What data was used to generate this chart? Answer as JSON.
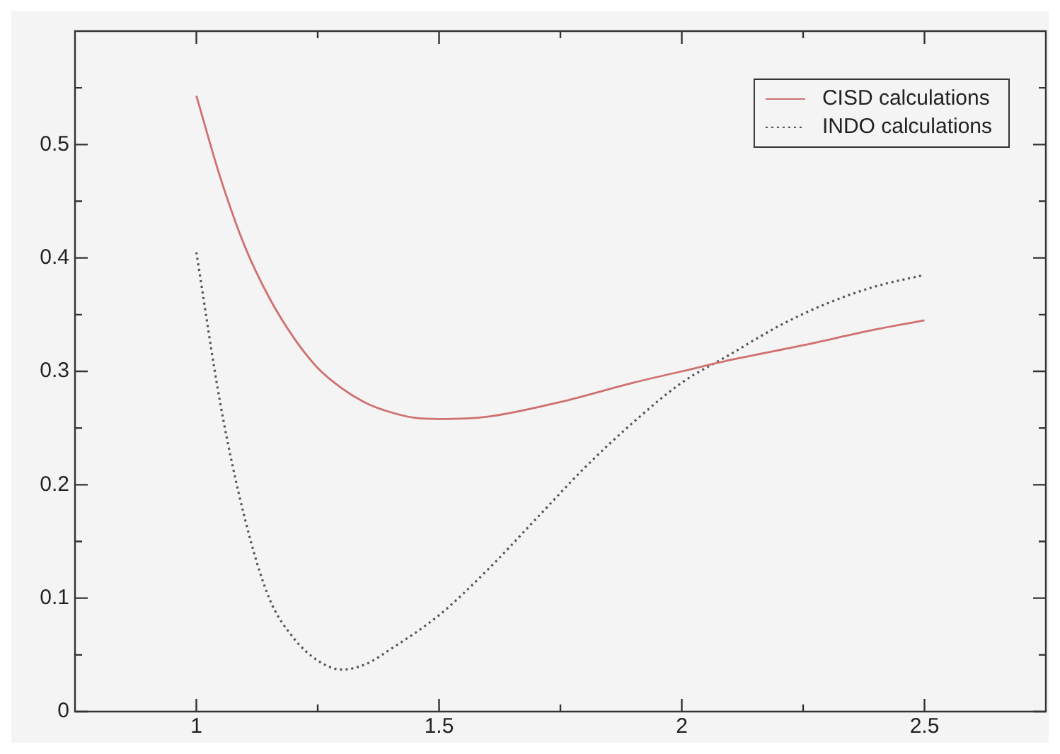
{
  "chart_data": {
    "type": "line",
    "xlim": [
      0.75,
      2.75
    ],
    "ylim": [
      0,
      0.6
    ],
    "xticks": [
      1,
      {
        "value": 1.25,
        "label": null
      },
      1.5,
      {
        "value": 1.75,
        "label": null
      },
      2,
      {
        "value": 2.25,
        "label": null
      },
      2.5
    ],
    "yticks": [
      0,
      {
        "value": 0.05,
        "label": null
      },
      0.1,
      {
        "value": 0.15,
        "label": null
      },
      0.2,
      {
        "value": 0.25,
        "label": null
      },
      0.3,
      {
        "value": 0.35,
        "label": null
      },
      0.4,
      {
        "value": 0.45,
        "label": null
      },
      0.5,
      {
        "value": 0.55,
        "label": null
      }
    ],
    "grid": false,
    "legend": "top right",
    "marker": "none",
    "series": [
      {
        "name": "CISD calculations",
        "color": "#d07070",
        "line_style": "solid",
        "x": [
          1,
          1.05,
          1.1,
          1.15,
          1.2,
          1.25,
          1.3,
          1.35,
          1.4,
          1.45,
          1.5,
          1.6,
          1.75,
          1.9,
          2,
          2.1,
          2.25,
          2.4,
          2.5
        ],
        "values": [
          0.543,
          0.47,
          0.41,
          0.365,
          0.33,
          0.303,
          0.285,
          0.272,
          0.264,
          0.259,
          0.258,
          0.26,
          0.273,
          0.29,
          0.3,
          0.31,
          0.323,
          0.337,
          0.345
        ]
      },
      {
        "name": "INDO calculations",
        "color": "#555555",
        "line_style": "dotted",
        "x": [
          1,
          1.05,
          1.1,
          1.15,
          1.2,
          1.25,
          1.3,
          1.35,
          1.4,
          1.5,
          1.6,
          1.7,
          1.8,
          1.9,
          2,
          2.1,
          2.2,
          2.3,
          2.4,
          2.5
        ],
        "values": [
          0.405,
          0.27,
          0.17,
          0.1,
          0.065,
          0.045,
          0.037,
          0.042,
          0.055,
          0.085,
          0.125,
          0.17,
          0.215,
          0.255,
          0.29,
          0.315,
          0.34,
          0.36,
          0.375,
          0.385
        ]
      }
    ]
  }
}
